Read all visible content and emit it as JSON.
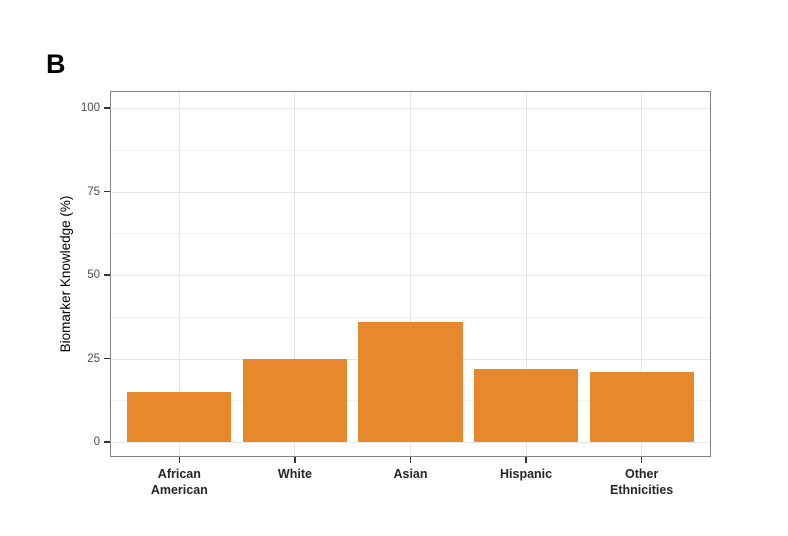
{
  "figure": {
    "panel_label": "B"
  },
  "chart_data": {
    "type": "bar",
    "title": "",
    "categories": [
      "African\nAmerican",
      "White",
      "Asian",
      "Hispanic",
      "Other\nEthnicities"
    ],
    "values": [
      15,
      25,
      36,
      22,
      21
    ],
    "xlabel": "",
    "ylabel": "Biomarker Knowledge (%)",
    "ylim": [
      0,
      100
    ],
    "yticks": [
      0,
      25,
      50,
      75,
      100
    ],
    "yticks_minor": [
      12.5,
      37.5,
      62.5,
      87.5
    ],
    "bar_color": "#E6882B",
    "grid": "on",
    "legend": "none"
  },
  "colors": {
    "bar": "#E6882B",
    "grid_major": "#E6E6E6",
    "grid_minor": "#F2F2F2",
    "panel_border": "#828282",
    "axis_tick": "#333333",
    "y_tick_label": "#4D4D4D",
    "x_tick_label": "#262626"
  }
}
